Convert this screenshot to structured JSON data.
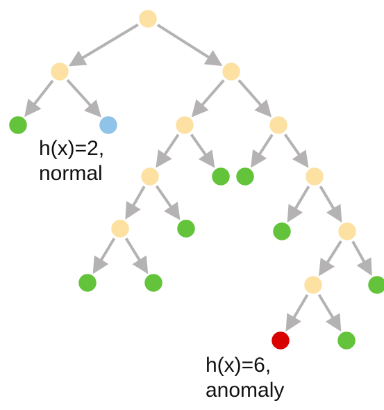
{
  "colors": {
    "internal": "#fde1a3",
    "leaf": "#63c33a",
    "normal": "#8fc3e8",
    "anomaly": "#d90000",
    "edge": "#b4b2b2"
  },
  "nodes": [
    {
      "id": "root",
      "kind": "internal"
    },
    {
      "id": "n-l",
      "kind": "internal"
    },
    {
      "id": "n-r",
      "kind": "internal"
    },
    {
      "id": "leaf-ll",
      "kind": "leaf"
    },
    {
      "id": "leaf-normal",
      "kind": "normal"
    },
    {
      "id": "n-rl",
      "kind": "internal"
    },
    {
      "id": "n-rr",
      "kind": "internal"
    },
    {
      "id": "n-rll",
      "kind": "internal"
    },
    {
      "id": "leaf-rlr",
      "kind": "leaf"
    },
    {
      "id": "leaf-rrl",
      "kind": "leaf"
    },
    {
      "id": "n-rrr",
      "kind": "internal"
    },
    {
      "id": "n-rlll",
      "kind": "internal"
    },
    {
      "id": "leaf-rllr",
      "kind": "leaf"
    },
    {
      "id": "leaf-rllll",
      "kind": "leaf"
    },
    {
      "id": "leaf-rlllr",
      "kind": "leaf"
    },
    {
      "id": "leaf-rrrl",
      "kind": "leaf"
    },
    {
      "id": "n-rrrr",
      "kind": "internal"
    },
    {
      "id": "n-rrrrl",
      "kind": "internal"
    },
    {
      "id": "leaf-rrrrr",
      "kind": "leaf"
    },
    {
      "id": "leaf-anomaly",
      "kind": "anomaly"
    },
    {
      "id": "leaf-rrrrlr",
      "kind": "leaf"
    }
  ],
  "edges": [
    [
      "root",
      "n-l"
    ],
    [
      "root",
      "n-r"
    ],
    [
      "n-l",
      "leaf-ll"
    ],
    [
      "n-l",
      "leaf-normal"
    ],
    [
      "n-r",
      "n-rl"
    ],
    [
      "n-r",
      "n-rr"
    ],
    [
      "n-rl",
      "n-rll"
    ],
    [
      "n-rl",
      "leaf-rlr"
    ],
    [
      "n-rr",
      "leaf-rrl"
    ],
    [
      "n-rr",
      "n-rrr"
    ],
    [
      "n-rll",
      "n-rlll"
    ],
    [
      "n-rll",
      "leaf-rllr"
    ],
    [
      "n-rlll",
      "leaf-rllll"
    ],
    [
      "n-rlll",
      "leaf-rlllr"
    ],
    [
      "n-rrr",
      "leaf-rrrl"
    ],
    [
      "n-rrr",
      "n-rrrr"
    ],
    [
      "n-rrrr",
      "n-rrrrl"
    ],
    [
      "n-rrrr",
      "leaf-rrrrr"
    ],
    [
      "n-rrrrl",
      "leaf-anomaly"
    ],
    [
      "n-rrrrl",
      "leaf-rrrrlr"
    ]
  ],
  "labels": {
    "normal": {
      "line1": "h(x)=2,",
      "line2": "normal"
    },
    "anomaly": {
      "line1": "h(x)=6,",
      "line2": "anomaly"
    }
  }
}
